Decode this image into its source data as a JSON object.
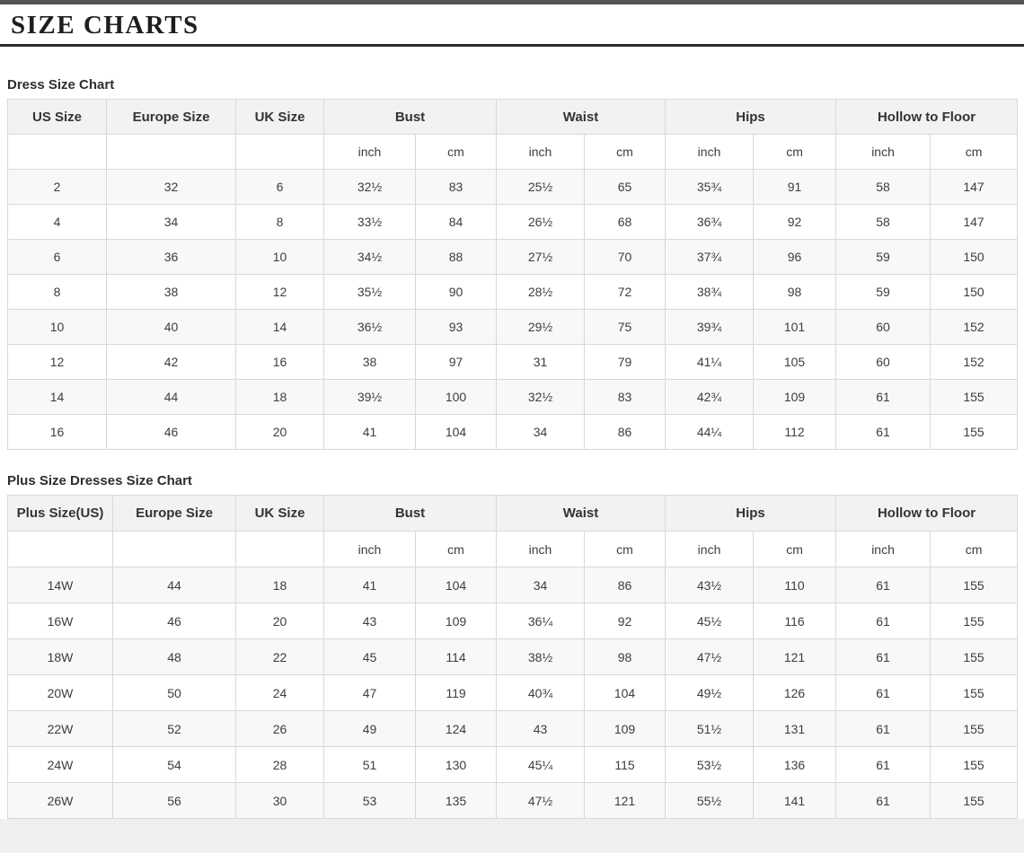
{
  "page": {
    "title": "SIZE CHARTS"
  },
  "colors": {
    "page_bg": "#ffffff",
    "outside_bg": "#efefef",
    "top_edge": "#545454",
    "title_text": "#1d1d1d",
    "title_rule": "#2a2a2a",
    "table_border": "#d8d8d8",
    "header_bg": "#f2f2f2",
    "stripe_bg": "#f8f8f8",
    "cell_text": "#3d3d3d"
  },
  "unit_labels": {
    "inch": "inch",
    "cm": "cm"
  },
  "tables": [
    {
      "label": "Dress Size Chart",
      "columns": [
        "US Size",
        "Europe Size",
        "UK Size"
      ],
      "measure_groups": [
        "Bust",
        "Waist",
        "Hips",
        "Hollow to Floor"
      ],
      "rows": [
        [
          "2",
          "32",
          "6",
          "32½",
          "83",
          "25½",
          "65",
          "35¾",
          "91",
          "58",
          "147"
        ],
        [
          "4",
          "34",
          "8",
          "33½",
          "84",
          "26½",
          "68",
          "36¾",
          "92",
          "58",
          "147"
        ],
        [
          "6",
          "36",
          "10",
          "34½",
          "88",
          "27½",
          "70",
          "37¾",
          "96",
          "59",
          "150"
        ],
        [
          "8",
          "38",
          "12",
          "35½",
          "90",
          "28½",
          "72",
          "38¾",
          "98",
          "59",
          "150"
        ],
        [
          "10",
          "40",
          "14",
          "36½",
          "93",
          "29½",
          "75",
          "39¾",
          "101",
          "60",
          "152"
        ],
        [
          "12",
          "42",
          "16",
          "38",
          "97",
          "31",
          "79",
          "41¼",
          "105",
          "60",
          "152"
        ],
        [
          "14",
          "44",
          "18",
          "39½",
          "100",
          "32½",
          "83",
          "42¾",
          "109",
          "61",
          "155"
        ],
        [
          "16",
          "46",
          "20",
          "41",
          "104",
          "34",
          "86",
          "44¼",
          "112",
          "61",
          "155"
        ]
      ]
    },
    {
      "label": "Plus Size Dresses Size Chart",
      "columns": [
        "Plus Size(US)",
        "Europe Size",
        "UK Size"
      ],
      "measure_groups": [
        "Bust",
        "Waist",
        "Hips",
        "Hollow to Floor"
      ],
      "rows": [
        [
          "14W",
          "44",
          "18",
          "41",
          "104",
          "34",
          "86",
          "43½",
          "110",
          "61",
          "155"
        ],
        [
          "16W",
          "46",
          "20",
          "43",
          "109",
          "36¼",
          "92",
          "45½",
          "116",
          "61",
          "155"
        ],
        [
          "18W",
          "48",
          "22",
          "45",
          "114",
          "38½",
          "98",
          "47½",
          "121",
          "61",
          "155"
        ],
        [
          "20W",
          "50",
          "24",
          "47",
          "119",
          "40¾",
          "104",
          "49½",
          "126",
          "61",
          "155"
        ],
        [
          "22W",
          "52",
          "26",
          "49",
          "124",
          "43",
          "109",
          "51½",
          "131",
          "61",
          "155"
        ],
        [
          "24W",
          "54",
          "28",
          "51",
          "130",
          "45¼",
          "115",
          "53½",
          "136",
          "61",
          "155"
        ],
        [
          "26W",
          "56",
          "30",
          "53",
          "135",
          "47½",
          "121",
          "55½",
          "141",
          "61",
          "155"
        ]
      ]
    }
  ]
}
